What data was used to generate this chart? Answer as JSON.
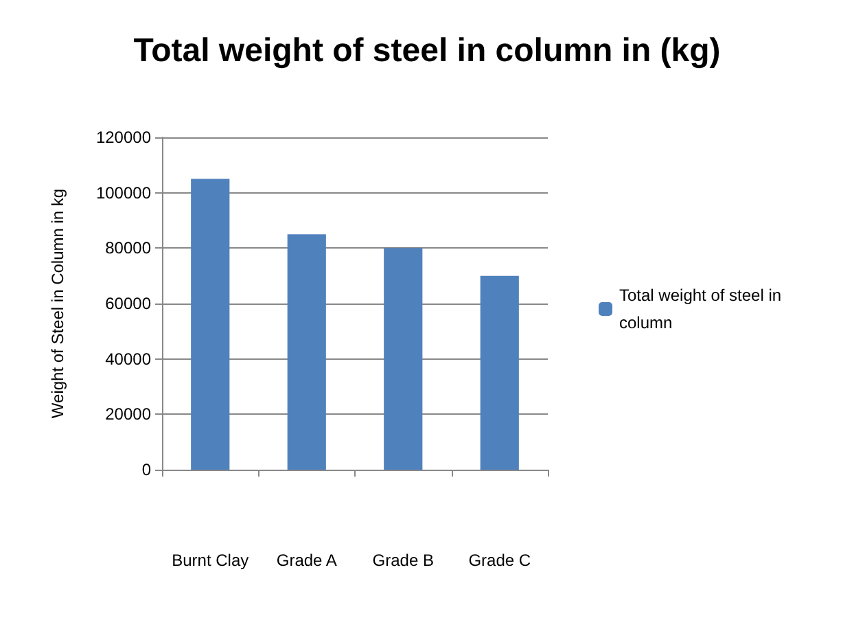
{
  "chart_data": {
    "type": "bar",
    "title": "Total weight of steel in column in (kg)",
    "ylabel": "Weight of Steel in Column in kg",
    "categories": [
      "Burnt Clay",
      "Grade A",
      "Grade B",
      "Grade C"
    ],
    "series": [
      {
        "name": "Total weight of steel in column",
        "color": "#4f81bd",
        "values": [
          105000,
          85000,
          80000,
          70000
        ]
      }
    ],
    "ylim": [
      0,
      120000
    ],
    "yticks": [
      0,
      20000,
      40000,
      60000,
      80000,
      100000,
      120000
    ],
    "grid": "y",
    "legend": "right"
  }
}
